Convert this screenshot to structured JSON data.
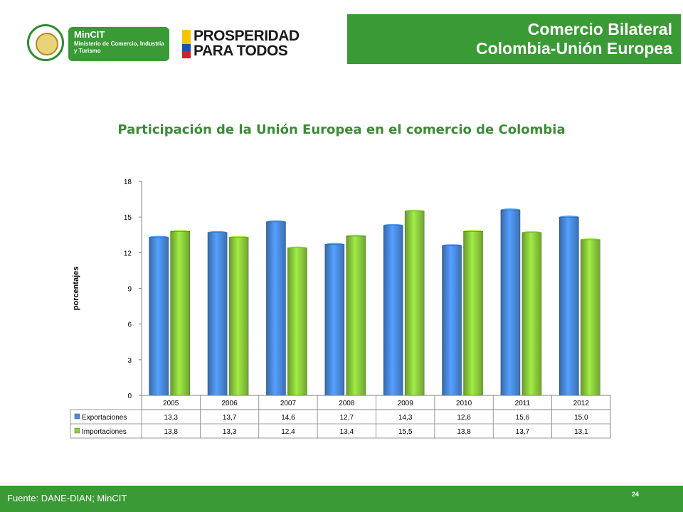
{
  "header": {
    "mincit_name": "MinCIT",
    "mincit_sub": "Ministerio de Comercio, Industria y Turismo",
    "prosperidad_line1": "PROSPERIDAD",
    "prosperidad_line2": "PARA TODOS",
    "title_line1": "Comercio Bilateral",
    "title_line2": "Colombia-Unión Europea",
    "colors": {
      "green": "#3a9a36",
      "yellow": "#f5c400",
      "blue": "#1d4fa3",
      "red": "#d21f2b"
    }
  },
  "chart_data": {
    "type": "bar",
    "title": "Participación de la Unión Europea en el comercio de Colombia",
    "ylabel": "porcentajes",
    "xlabel": "",
    "ylim": [
      0,
      18
    ],
    "yticks": [
      0,
      3,
      6,
      9,
      12,
      15,
      18
    ],
    "categories": [
      "2005",
      "2006",
      "2007",
      "2008",
      "2009",
      "2010",
      "2011",
      "2012"
    ],
    "series": [
      {
        "name": "Exportaciones",
        "color": "#4a8be0",
        "values": [
          13.3,
          13.7,
          14.6,
          12.7,
          14.3,
          12.6,
          15.6,
          15.0
        ],
        "labels": [
          "13,3",
          "13,7",
          "14,6",
          "12,7",
          "14,3",
          "12,6",
          "15,6",
          "15,0"
        ]
      },
      {
        "name": "Importaciones",
        "color": "#8ccd3d",
        "values": [
          13.8,
          13.3,
          12.4,
          13.4,
          15.5,
          13.8,
          13.7,
          13.1
        ],
        "labels": [
          "13,8",
          "13,3",
          "12,4",
          "13,4",
          "15,5",
          "13,8",
          "13,7",
          "13,1"
        ]
      }
    ],
    "grid": false,
    "legend": "data-table"
  },
  "footer": {
    "source": "Fuente: DANE-DIAN; MinCIT",
    "page_number": "24"
  }
}
